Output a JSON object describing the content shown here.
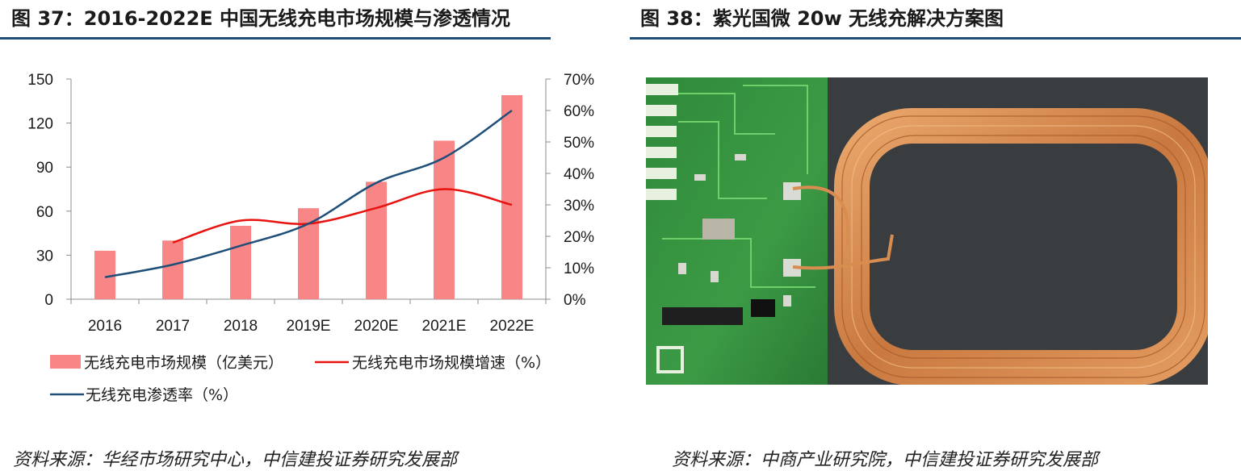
{
  "figure37": {
    "title": "图 37：2016-2022E 中国无线充电市场规模与渗透情况",
    "source": "资料来源：华经市场研究中心，中信建投证券研究发展部"
  },
  "figure38": {
    "title": "图 38：紫光国微 20w 无线充解决方案图",
    "source": "资料来源：中商产业研究院，中信建投证券研究发展部"
  },
  "chart_data": {
    "type": "bar",
    "categories": [
      "2016",
      "2017",
      "2018",
      "2019E",
      "2020E",
      "2021E",
      "2022E"
    ],
    "series": [
      {
        "name": "无线充电市场规模（亿美元）",
        "type": "bar",
        "axis": "left",
        "color": "#f88686",
        "values": [
          33,
          40,
          50,
          62,
          80,
          108,
          139
        ]
      },
      {
        "name": "无线充电市场规模增速（%）",
        "type": "line",
        "axis": "right",
        "color": "#e8120f",
        "values": [
          null,
          18,
          25,
          24,
          29,
          35,
          30
        ]
      },
      {
        "name": "无线充电渗透率（%）",
        "type": "line",
        "axis": "right",
        "color": "#1f4e79",
        "values": [
          7,
          11,
          17,
          24,
          37,
          45,
          60
        ]
      }
    ],
    "y_left": {
      "ylim": [
        0,
        150
      ],
      "ticks": [
        0,
        30,
        60,
        90,
        120,
        150
      ]
    },
    "y_right": {
      "ylim": [
        0,
        70
      ],
      "ticks": [
        "0%",
        "10%",
        "20%",
        "30%",
        "40%",
        "50%",
        "60%",
        "70%"
      ]
    },
    "legend_position": "bottom-left",
    "grid": false
  }
}
